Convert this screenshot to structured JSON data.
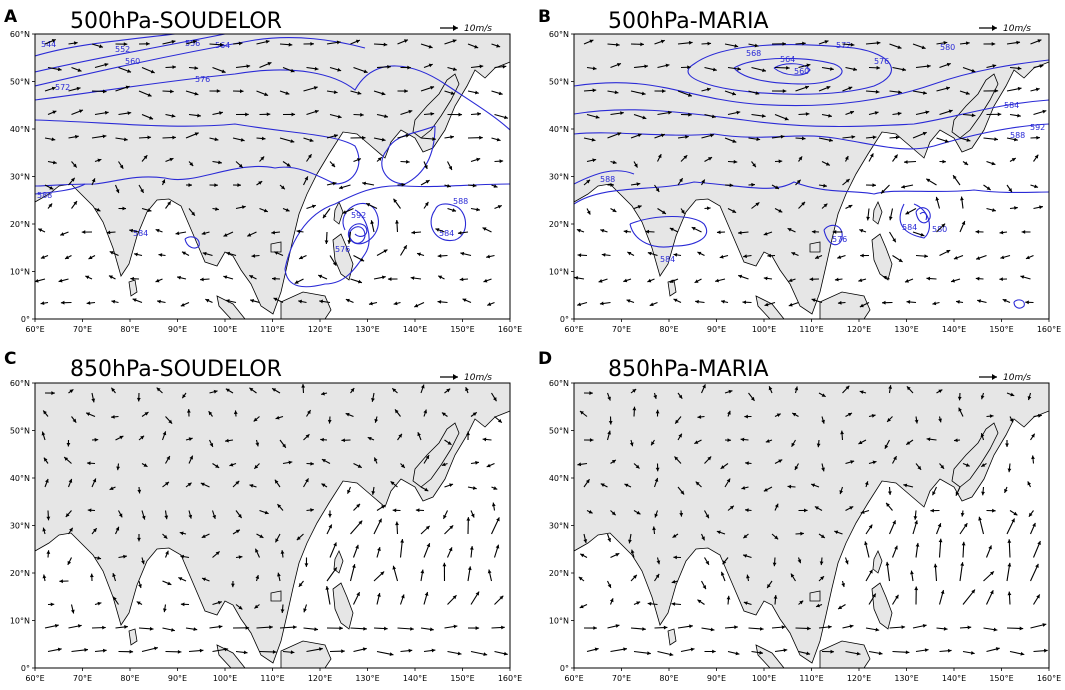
{
  "panels": [
    {
      "letter": "A",
      "title": "500hPa-SOUDELOR",
      "contours": true,
      "contour_labels": [
        "544",
        "552",
        "556",
        "564",
        "572",
        "560",
        "576",
        "588",
        "584",
        "592",
        "576",
        "584",
        "588"
      ],
      "ref_vector": "10m/s"
    },
    {
      "letter": "B",
      "title": "500hPa-MARIA",
      "contours": true,
      "contour_labels": [
        "568",
        "564",
        "560",
        "572",
        "576",
        "580",
        "584",
        "588",
        "592",
        "588",
        "584",
        "576",
        "584",
        "580"
      ],
      "ref_vector": "10m/s"
    },
    {
      "letter": "C",
      "title": "850hPa-SOUDELOR",
      "contours": false,
      "contour_labels": [],
      "ref_vector": "10m/s"
    },
    {
      "letter": "D",
      "title": "850hPa-MARIA",
      "contours": false,
      "contour_labels": [],
      "ref_vector": "10m/s"
    }
  ],
  "lon_ticks": [
    "60°E",
    "70°E",
    "80°E",
    "90°E",
    "100°E",
    "110°E",
    "120°E",
    "130°E",
    "140°E",
    "150°E",
    "160°E"
  ],
  "lat_ticks": [
    "0°",
    "10°N",
    "20°N",
    "30°N",
    "40°N",
    "50°N",
    "60°N"
  ],
  "colors": {
    "land": "#e6e6e6",
    "ocean": "#ffffff",
    "contour": "#2a2ad6",
    "arrow": "#000000"
  }
}
